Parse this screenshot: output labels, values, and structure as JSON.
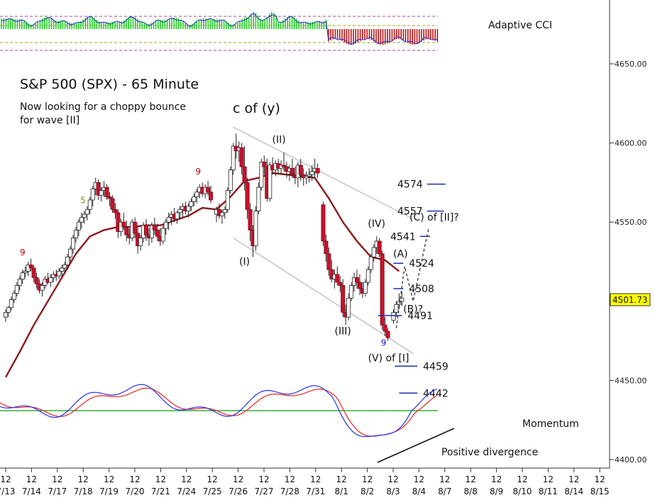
{
  "chart_data": {
    "type": "candlestick",
    "title": "S&P 500 (SPX) - 65 Minute",
    "subtitle_lines": [
      "Now looking for a choppy bounce",
      "for wave [II]"
    ],
    "heading": "c of (y)",
    "price_axis": {
      "ticks": [
        "4650.00",
        "4600.00",
        "4550.00",
        "4500.00",
        "4450.00",
        "4400.00"
      ],
      "tick_values": [
        4650,
        4600,
        4550,
        4500,
        4450,
        4400
      ],
      "ylim": [
        4400,
        4650
      ],
      "current_price_label": "4501.73",
      "current_price": 4501.73
    },
    "x_axis": {
      "hour_label": "12",
      "dates": [
        "7/13",
        "7/14",
        "7/17",
        "7/18",
        "7/19",
        "7/20",
        "7/21",
        "7/24",
        "7/25",
        "7/26",
        "7/27",
        "7/28",
        "7/31",
        "8/1",
        "8/2",
        "8/3",
        "8/4",
        "8/7",
        "8/8",
        "8/9",
        "8/10",
        "8/11",
        "8/14",
        "8/15"
      ]
    },
    "candles": [
      [
        0,
        4490,
        4495,
        4487,
        4493
      ],
      [
        0.4,
        4493,
        4497,
        4490,
        4496
      ],
      [
        0.8,
        4496,
        4503,
        4494,
        4501
      ],
      [
        1.2,
        4501,
        4507,
        4499,
        4505
      ],
      [
        1.6,
        4505,
        4512,
        4503,
        4510
      ],
      [
        2.0,
        4510,
        4516,
        4507,
        4514
      ],
      [
        2.4,
        4514,
        4520,
        4511,
        4518
      ],
      [
        2.8,
        4518,
        4522,
        4515,
        4519
      ],
      [
        3.2,
        4519,
        4525,
        4516,
        4523
      ],
      [
        3.6,
        4523,
        4527,
        4519,
        4521
      ],
      [
        4.0,
        4521,
        4523,
        4512,
        4515
      ],
      [
        4.4,
        4515,
        4518,
        4508,
        4511
      ],
      [
        4.8,
        4511,
        4514,
        4505,
        4507
      ],
      [
        5.2,
        4507,
        4512,
        4503,
        4510
      ],
      [
        5.6,
        4510,
        4516,
        4508,
        4514
      ],
      [
        6.0,
        4514,
        4518,
        4511,
        4512
      ],
      [
        6.4,
        4512,
        4517,
        4509,
        4515
      ],
      [
        6.8,
        4515,
        4519,
        4512,
        4517
      ],
      [
        7.2,
        4517,
        4520,
        4513,
        4516
      ],
      [
        7.6,
        4516,
        4521,
        4514,
        4519
      ],
      [
        8.0,
        4519,
        4523,
        4516,
        4521
      ],
      [
        8.4,
        4521,
        4525,
        4518,
        4523
      ],
      [
        8.8,
        4523,
        4530,
        4520,
        4528
      ],
      [
        9.2,
        4528,
        4535,
        4525,
        4533
      ],
      [
        9.6,
        4533,
        4542,
        4530,
        4540
      ],
      [
        10.0,
        4540,
        4547,
        4537,
        4545
      ],
      [
        10.4,
        4545,
        4552,
        4541,
        4550
      ],
      [
        10.8,
        4550,
        4556,
        4546,
        4553
      ],
      [
        11.2,
        4553,
        4557,
        4549,
        4555
      ],
      [
        11.6,
        4555,
        4560,
        4551,
        4558
      ],
      [
        12.0,
        4558,
        4566,
        4555,
        4564
      ],
      [
        12.4,
        4564,
        4573,
        4560,
        4571
      ],
      [
        12.8,
        4571,
        4578,
        4567,
        4575
      ],
      [
        13.2,
        4575,
        4577,
        4564,
        4567
      ],
      [
        13.6,
        4567,
        4572,
        4563,
        4570
      ],
      [
        14.0,
        4570,
        4576,
        4566,
        4572
      ],
      [
        14.4,
        4572,
        4574,
        4564,
        4566
      ],
      [
        14.8,
        4566,
        4569,
        4560,
        4565
      ],
      [
        15.2,
        4565,
        4567,
        4556,
        4558
      ],
      [
        15.6,
        4558,
        4562,
        4552,
        4556
      ],
      [
        16.0,
        4556,
        4558,
        4540,
        4544
      ],
      [
        16.4,
        4544,
        4552,
        4541,
        4550
      ],
      [
        16.8,
        4550,
        4556,
        4545,
        4547
      ],
      [
        17.2,
        4547,
        4551,
        4538,
        4542
      ],
      [
        17.6,
        4542,
        4546,
        4536,
        4540
      ],
      [
        18.0,
        4540,
        4552,
        4538,
        4550
      ],
      [
        18.4,
        4550,
        4553,
        4540,
        4543
      ],
      [
        18.8,
        4543,
        4547,
        4530,
        4535
      ],
      [
        19.2,
        4535,
        4542,
        4532,
        4540
      ],
      [
        19.6,
        4540,
        4550,
        4537,
        4548
      ],
      [
        20.0,
        4548,
        4552,
        4538,
        4542
      ],
      [
        20.4,
        4542,
        4546,
        4535,
        4540
      ],
      [
        20.8,
        4540,
        4550,
        4537,
        4548
      ],
      [
        21.2,
        4548,
        4553,
        4542,
        4545
      ],
      [
        21.6,
        4545,
        4549,
        4538,
        4541
      ],
      [
        22.0,
        4541,
        4546,
        4535,
        4538
      ],
      [
        22.4,
        4538,
        4548,
        4536,
        4546
      ],
      [
        22.8,
        4546,
        4552,
        4542,
        4550
      ],
      [
        23.2,
        4550,
        4556,
        4545,
        4553
      ],
      [
        23.6,
        4553,
        4557,
        4548,
        4555
      ],
      [
        24.0,
        4555,
        4559,
        4550,
        4552
      ],
      [
        24.4,
        4552,
        4557,
        4549,
        4556
      ],
      [
        24.8,
        4556,
        4560,
        4552,
        4558
      ],
      [
        25.2,
        4558,
        4562,
        4553,
        4560
      ],
      [
        25.6,
        4560,
        4563,
        4555,
        4557
      ],
      [
        26.0,
        4557,
        4562,
        4553,
        4560
      ],
      [
        26.4,
        4560,
        4565,
        4557,
        4563
      ],
      [
        26.8,
        4563,
        4568,
        4560,
        4566
      ],
      [
        27.2,
        4566,
        4571,
        4562,
        4569
      ],
      [
        27.6,
        4569,
        4574,
        4565,
        4572
      ],
      [
        28.0,
        4572,
        4575,
        4566,
        4568
      ],
      [
        28.4,
        4568,
        4574,
        4565,
        4572
      ],
      [
        28.8,
        4572,
        4576,
        4567,
        4569
      ],
      [
        29.2,
        4569,
        4573,
        4562,
        4564
      ],
      [
        30.0,
        4555,
        4560,
        4550,
        4558
      ],
      [
        30.4,
        4558,
        4562,
        4552,
        4554
      ],
      [
        30.8,
        4554,
        4558,
        4549,
        4556
      ],
      [
        31.2,
        4556,
        4560,
        4552,
        4558
      ],
      [
        31.6,
        4558,
        4572,
        4556,
        4570
      ],
      [
        32.0,
        4570,
        4585,
        4568,
        4583
      ],
      [
        32.4,
        4583,
        4600,
        4580,
        4598
      ],
      [
        32.8,
        4598,
        4606,
        4590,
        4595
      ],
      [
        33.2,
        4595,
        4601,
        4588,
        4597
      ],
      [
        33.6,
        4597,
        4600,
        4580,
        4585
      ],
      [
        34.0,
        4585,
        4598,
        4570,
        4575
      ],
      [
        34.4,
        4575,
        4578,
        4552,
        4558
      ],
      [
        34.8,
        4558,
        4562,
        4538,
        4545
      ],
      [
        35.2,
        4545,
        4548,
        4528,
        4535
      ],
      [
        35.6,
        4535,
        4560,
        4532,
        4557
      ],
      [
        36.0,
        4557,
        4575,
        4555,
        4572
      ],
      [
        36.4,
        4572,
        4590,
        4570,
        4588
      ],
      [
        36.8,
        4588,
        4592,
        4580,
        4585
      ],
      [
        37.2,
        4585,
        4590,
        4563,
        4565
      ],
      [
        37.6,
        4565,
        4588,
        4563,
        4586
      ],
      [
        38.0,
        4586,
        4591,
        4580,
        4583
      ],
      [
        38.4,
        4583,
        4589,
        4579,
        4587
      ],
      [
        38.8,
        4587,
        4590,
        4581,
        4584
      ],
      [
        39.2,
        4584,
        4589,
        4580,
        4586
      ],
      [
        39.6,
        4586,
        4594,
        4582,
        4585
      ],
      [
        40.0,
        4585,
        4588,
        4578,
        4582
      ],
      [
        40.4,
        4582,
        4586,
        4576,
        4584
      ],
      [
        40.8,
        4584,
        4590,
        4578,
        4580
      ],
      [
        41.2,
        4580,
        4585,
        4574,
        4578
      ],
      [
        41.6,
        4578,
        4588,
        4572,
        4586
      ],
      [
        42.0,
        4586,
        4590,
        4576,
        4580
      ],
      [
        42.4,
        4580,
        4584,
        4573,
        4578
      ],
      [
        42.8,
        4578,
        4582,
        4574,
        4579
      ],
      [
        43.2,
        4579,
        4584,
        4575,
        4580
      ],
      [
        43.6,
        4580,
        4586,
        4576,
        4582
      ],
      [
        44.0,
        4582,
        4590,
        4578,
        4584
      ],
      [
        44.4,
        4584,
        4587,
        4578,
        4581
      ],
      [
        45.2,
        4561,
        4563,
        4535,
        4538
      ],
      [
        45.6,
        4538,
        4542,
        4525,
        4530
      ],
      [
        46.0,
        4530,
        4534,
        4516,
        4520
      ],
      [
        46.4,
        4520,
        4526,
        4512,
        4514
      ],
      [
        46.8,
        4514,
        4520,
        4508,
        4517
      ],
      [
        47.2,
        4517,
        4522,
        4510,
        4512
      ],
      [
        47.6,
        4512,
        4516,
        4506,
        4510
      ],
      [
        48.0,
        4510,
        4514,
        4490,
        4493
      ],
      [
        48.4,
        4493,
        4498,
        4485,
        4490
      ],
      [
        48.8,
        4490,
        4505,
        4488,
        4502
      ],
      [
        49.2,
        4502,
        4512,
        4500,
        4510
      ],
      [
        49.6,
        4510,
        4518,
        4506,
        4515
      ],
      [
        50.0,
        4515,
        4520,
        4508,
        4512
      ],
      [
        50.4,
        4512,
        4517,
        4504,
        4508
      ],
      [
        50.8,
        4508,
        4512,
        4502,
        4505
      ],
      [
        51.2,
        4505,
        4514,
        4503,
        4512
      ],
      [
        51.6,
        4512,
        4522,
        4510,
        4520
      ],
      [
        52.0,
        4520,
        4530,
        4518,
        4528
      ],
      [
        52.4,
        4528,
        4536,
        4525,
        4534
      ],
      [
        52.8,
        4534,
        4541,
        4530,
        4538
      ],
      [
        53.2,
        4538,
        4540,
        4528,
        4530
      ],
      [
        53.6,
        4530,
        4532,
        4482,
        4485
      ],
      [
        54.0,
        4485,
        4490,
        4478,
        4481
      ],
      [
        54.4,
        4481,
        4483,
        4475,
        4477
      ],
      [
        55.2,
        4488,
        4495,
        4486,
        4493
      ],
      [
        55.6,
        4493,
        4500,
        4490,
        4498
      ],
      [
        56.0,
        4498,
        4505,
        4495,
        4500
      ],
      [
        56.4,
        4500,
        4506,
        4497,
        4502
      ]
    ],
    "moving_average": [
      [
        0,
        4452
      ],
      [
        2,
        4468
      ],
      [
        4,
        4485
      ],
      [
        6,
        4500
      ],
      [
        8,
        4515
      ],
      [
        10,
        4530
      ],
      [
        12,
        4541
      ],
      [
        14,
        4545
      ],
      [
        16,
        4547
      ],
      [
        18,
        4547
      ],
      [
        20,
        4548
      ],
      [
        22,
        4548
      ],
      [
        24,
        4551
      ],
      [
        26,
        4554
      ],
      [
        28,
        4559
      ],
      [
        30,
        4558
      ],
      [
        32,
        4566
      ],
      [
        34,
        4576
      ],
      [
        36,
        4578
      ],
      [
        38,
        4581
      ],
      [
        40,
        4580
      ],
      [
        42,
        4579
      ],
      [
        44,
        4578
      ],
      [
        46,
        4565
      ],
      [
        48,
        4550
      ],
      [
        50,
        4538
      ],
      [
        52,
        4528
      ],
      [
        54,
        4526
      ],
      [
        56,
        4519
      ]
    ],
    "channel_lines": [
      {
        "from": [
          32.4,
          4610
        ],
        "to": [
          58.0,
          4552
        ]
      },
      {
        "from": [
          32.4,
          4540
        ],
        "to": [
          58.0,
          4467
        ]
      }
    ],
    "target_levels": [
      {
        "label": "4574",
        "value": 4574,
        "x0": 60.0,
        "x1": 62.6
      },
      {
        "label": "4557",
        "value": 4557,
        "x0": 60.0,
        "x1": 62.4
      },
      {
        "label": "4541",
        "value": 4541,
        "x0": 59.0,
        "x1": 60.4
      },
      {
        "label": "4524",
        "value": 4524,
        "x0": 55.2,
        "x1": 56.6
      },
      {
        "label": "4508",
        "value": 4508,
        "x0": 55.2,
        "x1": 56.6
      },
      {
        "label": "4491",
        "value": 4491,
        "x0": 53.0,
        "x1": 56.4
      },
      {
        "label": "4459",
        "value": 4459,
        "x0": 55.4,
        "x1": 58.6
      },
      {
        "label": "4442",
        "value": 4442,
        "x0": 56.0,
        "x1": 58.6
      }
    ],
    "projection_path": [
      [
        55.6,
        4483
      ],
      [
        56.8,
        4522
      ],
      [
        58.0,
        4500
      ],
      [
        60.2,
        4546
      ]
    ],
    "wave_labels": [
      {
        "text": "(I)",
        "x": 34.0,
        "y": 4523
      },
      {
        "text": "(II)",
        "x": 38.9,
        "y": 4600
      },
      {
        "text": "(III)",
        "x": 48.0,
        "y": 4479
      },
      {
        "text": "(IV)",
        "x": 52.8,
        "y": 4547
      },
      {
        "text": "(A)",
        "x": 56.2,
        "y": 4528
      },
      {
        "text": "(V) of [I]",
        "x": 54.5,
        "y": 4462
      },
      {
        "text": "(B)?",
        "x": 58.0,
        "y": 4493
      },
      {
        "text": "(C) of [II]?",
        "x": 61.0,
        "y": 4551
      }
    ],
    "count_markers": [
      {
        "text": "9",
        "x": 2.4,
        "y": 4529,
        "color": "#cc0000"
      },
      {
        "text": "5",
        "x": 11.0,
        "y": 4562,
        "color": "#888800"
      },
      {
        "text": "9",
        "x": 27.4,
        "y": 4580,
        "color": "#cc0000"
      },
      {
        "text": "9",
        "x": 53.8,
        "y": 4472,
        "color": "#1a1ad8"
      }
    ],
    "cci_panel": {
      "label": "Adaptive CCI"
    },
    "momentum_panel": {
      "label": "Momentum",
      "annotation": "Positive divergence"
    },
    "colors": {
      "up_candle": "#ffffff",
      "down_candle": "#c8102e",
      "wick": "#222222",
      "moving_average": "#8b1a1a",
      "channel": "#b8b8b8",
      "target_line": "#1c2fb5",
      "cci_green": "#22cc22",
      "cci_red": "#bb1111",
      "momentum_blue": "#2233ee",
      "momentum_red": "#ee2222",
      "momentum_zero": "#119911",
      "price_box": "#ffff00"
    }
  }
}
